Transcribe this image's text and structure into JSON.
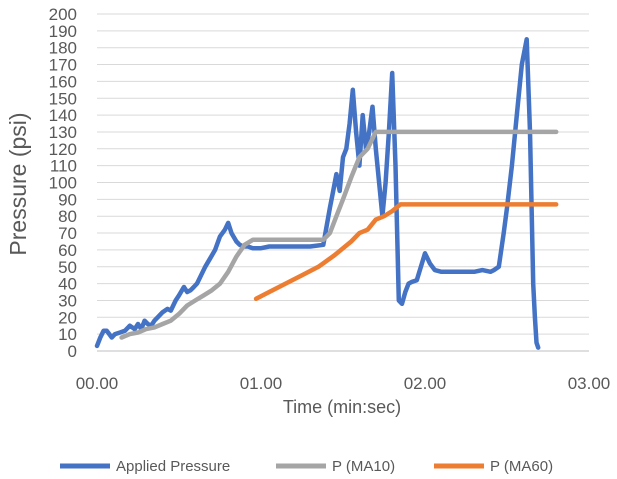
{
  "chart_data": {
    "type": "line",
    "title": "",
    "xlabel": "Time (min:sec)",
    "ylabel": "Pressure (psi)",
    "xlim": [
      0,
      3
    ],
    "ylim": [
      0,
      200
    ],
    "x_tick_values": [
      0,
      1,
      2,
      3
    ],
    "x_tick_labels": [
      "00.00",
      "01.00",
      "02.00",
      "03.00"
    ],
    "y_ticks": [
      0,
      10,
      20,
      30,
      40,
      50,
      60,
      70,
      80,
      90,
      100,
      110,
      120,
      130,
      140,
      150,
      160,
      170,
      180,
      190,
      200
    ],
    "grid": "horizontal",
    "legend_position": "bottom",
    "series": [
      {
        "name": "Applied Pressure",
        "color": "#4472C4",
        "x": [
          0.0,
          0.02,
          0.04,
          0.06,
          0.09,
          0.11,
          0.14,
          0.17,
          0.2,
          0.23,
          0.25,
          0.27,
          0.29,
          0.31,
          0.33,
          0.35,
          0.37,
          0.4,
          0.43,
          0.45,
          0.48,
          0.5,
          0.53,
          0.55,
          0.57,
          0.59,
          0.61,
          0.63,
          0.66,
          0.69,
          0.72,
          0.75,
          0.78,
          0.8,
          0.82,
          0.85,
          0.87,
          0.89,
          0.92,
          0.95,
          1.0,
          1.05,
          1.1,
          1.2,
          1.3,
          1.38,
          1.42,
          1.44,
          1.46,
          1.48,
          1.5,
          1.52,
          1.54,
          1.56,
          1.58,
          1.6,
          1.62,
          1.64,
          1.66,
          1.68,
          1.7,
          1.72,
          1.74,
          1.76,
          1.78,
          1.8,
          1.82,
          1.84,
          1.86,
          1.88,
          1.9,
          1.92,
          1.95,
          2.0,
          2.03,
          2.06,
          2.1,
          2.2,
          2.3,
          2.35,
          2.4,
          2.42,
          2.45,
          2.48,
          2.5,
          2.53,
          2.56,
          2.59,
          2.62,
          2.64,
          2.66,
          2.67,
          2.68,
          2.69
        ],
        "values": [
          3,
          8,
          12,
          12,
          8,
          10,
          11,
          12,
          15,
          13,
          16,
          13,
          18,
          16,
          15,
          18,
          20,
          23,
          25,
          24,
          30,
          33,
          38,
          35,
          36,
          38,
          40,
          44,
          50,
          55,
          60,
          68,
          72,
          76,
          70,
          65,
          63,
          62,
          62,
          61,
          61,
          62,
          62,
          62,
          62,
          63,
          85,
          95,
          105,
          95,
          115,
          120,
          135,
          155,
          130,
          110,
          140,
          120,
          130,
          145,
          120,
          100,
          80,
          100,
          130,
          165,
          110,
          30,
          28,
          35,
          40,
          41,
          42,
          58,
          52,
          48,
          47,
          47,
          47,
          48,
          47,
          48,
          50,
          70,
          85,
          110,
          140,
          170,
          185,
          130,
          40,
          20,
          5,
          2
        ]
      },
      {
        "name": "P (MA10)",
        "color": "#A5A5A5",
        "x": [
          0.15,
          0.2,
          0.25,
          0.3,
          0.35,
          0.4,
          0.45,
          0.5,
          0.55,
          0.6,
          0.65,
          0.7,
          0.75,
          0.8,
          0.85,
          0.9,
          0.95,
          1.0,
          1.1,
          1.2,
          1.3,
          1.38,
          1.42,
          1.46,
          1.5,
          1.55,
          1.6,
          1.65,
          1.7,
          1.8,
          2.0,
          2.2,
          2.4,
          2.6,
          2.8
        ],
        "values": [
          8,
          10,
          11,
          13,
          14,
          16,
          18,
          22,
          27,
          30,
          33,
          36,
          40,
          47,
          56,
          63,
          66,
          66,
          66,
          66,
          66,
          66,
          70,
          80,
          90,
          103,
          115,
          120,
          130,
          130,
          130,
          130,
          130,
          130,
          130
        ]
      },
      {
        "name": "P (MA60)",
        "color": "#ED7D31",
        "x": [
          0.97,
          1.05,
          1.15,
          1.25,
          1.35,
          1.45,
          1.55,
          1.6,
          1.65,
          1.7,
          1.75,
          1.8,
          1.85,
          2.0,
          2.2,
          2.4,
          2.6,
          2.8
        ],
        "values": [
          31,
          35,
          40,
          45,
          50,
          57,
          65,
          70,
          72,
          78,
          80,
          83,
          87,
          87,
          87,
          87,
          87,
          87
        ]
      }
    ]
  }
}
